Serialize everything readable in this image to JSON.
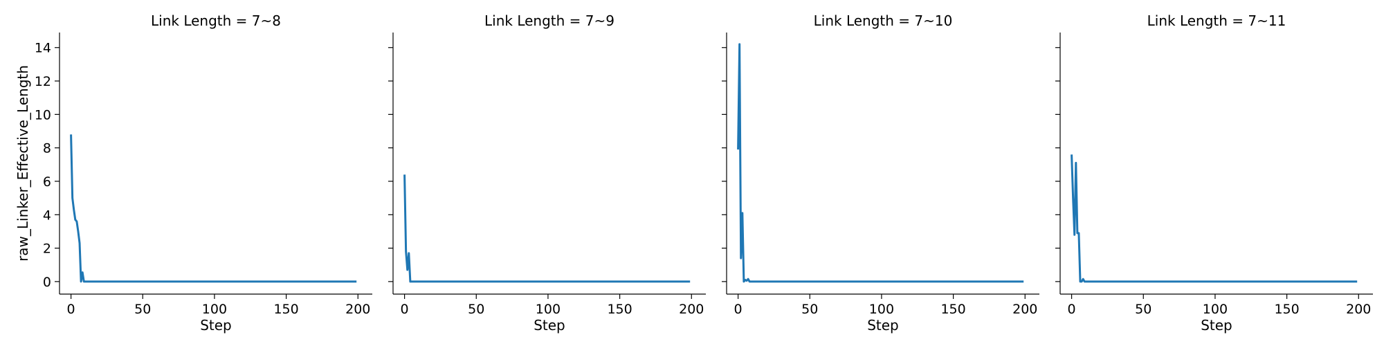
{
  "chart_data": {
    "type": "line",
    "layout": "facet-row",
    "line_color": "#1f77b4",
    "shared_y": true,
    "xlabel": "Step",
    "ylabel": "raw_Linker_Effective_Length",
    "xlim": [
      -8,
      210
    ],
    "ylim": [
      -0.75,
      14.9
    ],
    "xticks": [
      0,
      50,
      100,
      150,
      200
    ],
    "yticks": [
      0,
      2,
      4,
      6,
      8,
      10,
      12,
      14
    ],
    "panels": [
      {
        "title": "Link Length = 7~8",
        "series": [
          {
            "x": [
              0,
              1,
              2,
              3,
              4,
              5,
              6,
              7,
              8,
              9,
              10,
              199
            ],
            "y": [
              8.8,
              5.0,
              4.3,
              3.7,
              3.6,
              3.0,
              2.3,
              0.0,
              0.55,
              0.0,
              0.0,
              0.0
            ]
          }
        ]
      },
      {
        "title": "Link Length = 7~9",
        "series": [
          {
            "x": [
              0,
              1,
              2,
              3,
              4,
              199
            ],
            "y": [
              6.4,
              1.8,
              0.7,
              1.7,
              0.0,
              0.0
            ]
          }
        ]
      },
      {
        "title": "Link Length = 7~10",
        "series": [
          {
            "x": [
              0,
              1,
              2,
              3,
              4,
              5,
              6,
              7,
              8,
              9,
              10,
              199
            ],
            "y": [
              7.9,
              14.2,
              1.4,
              4.1,
              0.0,
              0.1,
              0.05,
              0.15,
              0.0,
              0.0,
              0.0,
              0.0
            ]
          }
        ]
      },
      {
        "title": "Link Length = 7~11",
        "series": [
          {
            "x": [
              0,
              1,
              2,
              3,
              4,
              5,
              6,
              7,
              8,
              9,
              10,
              199
            ],
            "y": [
              7.6,
              5.0,
              2.8,
              7.1,
              2.9,
              2.9,
              0.0,
              0.0,
              0.15,
              0.0,
              0.0,
              0.0
            ]
          }
        ]
      }
    ]
  }
}
